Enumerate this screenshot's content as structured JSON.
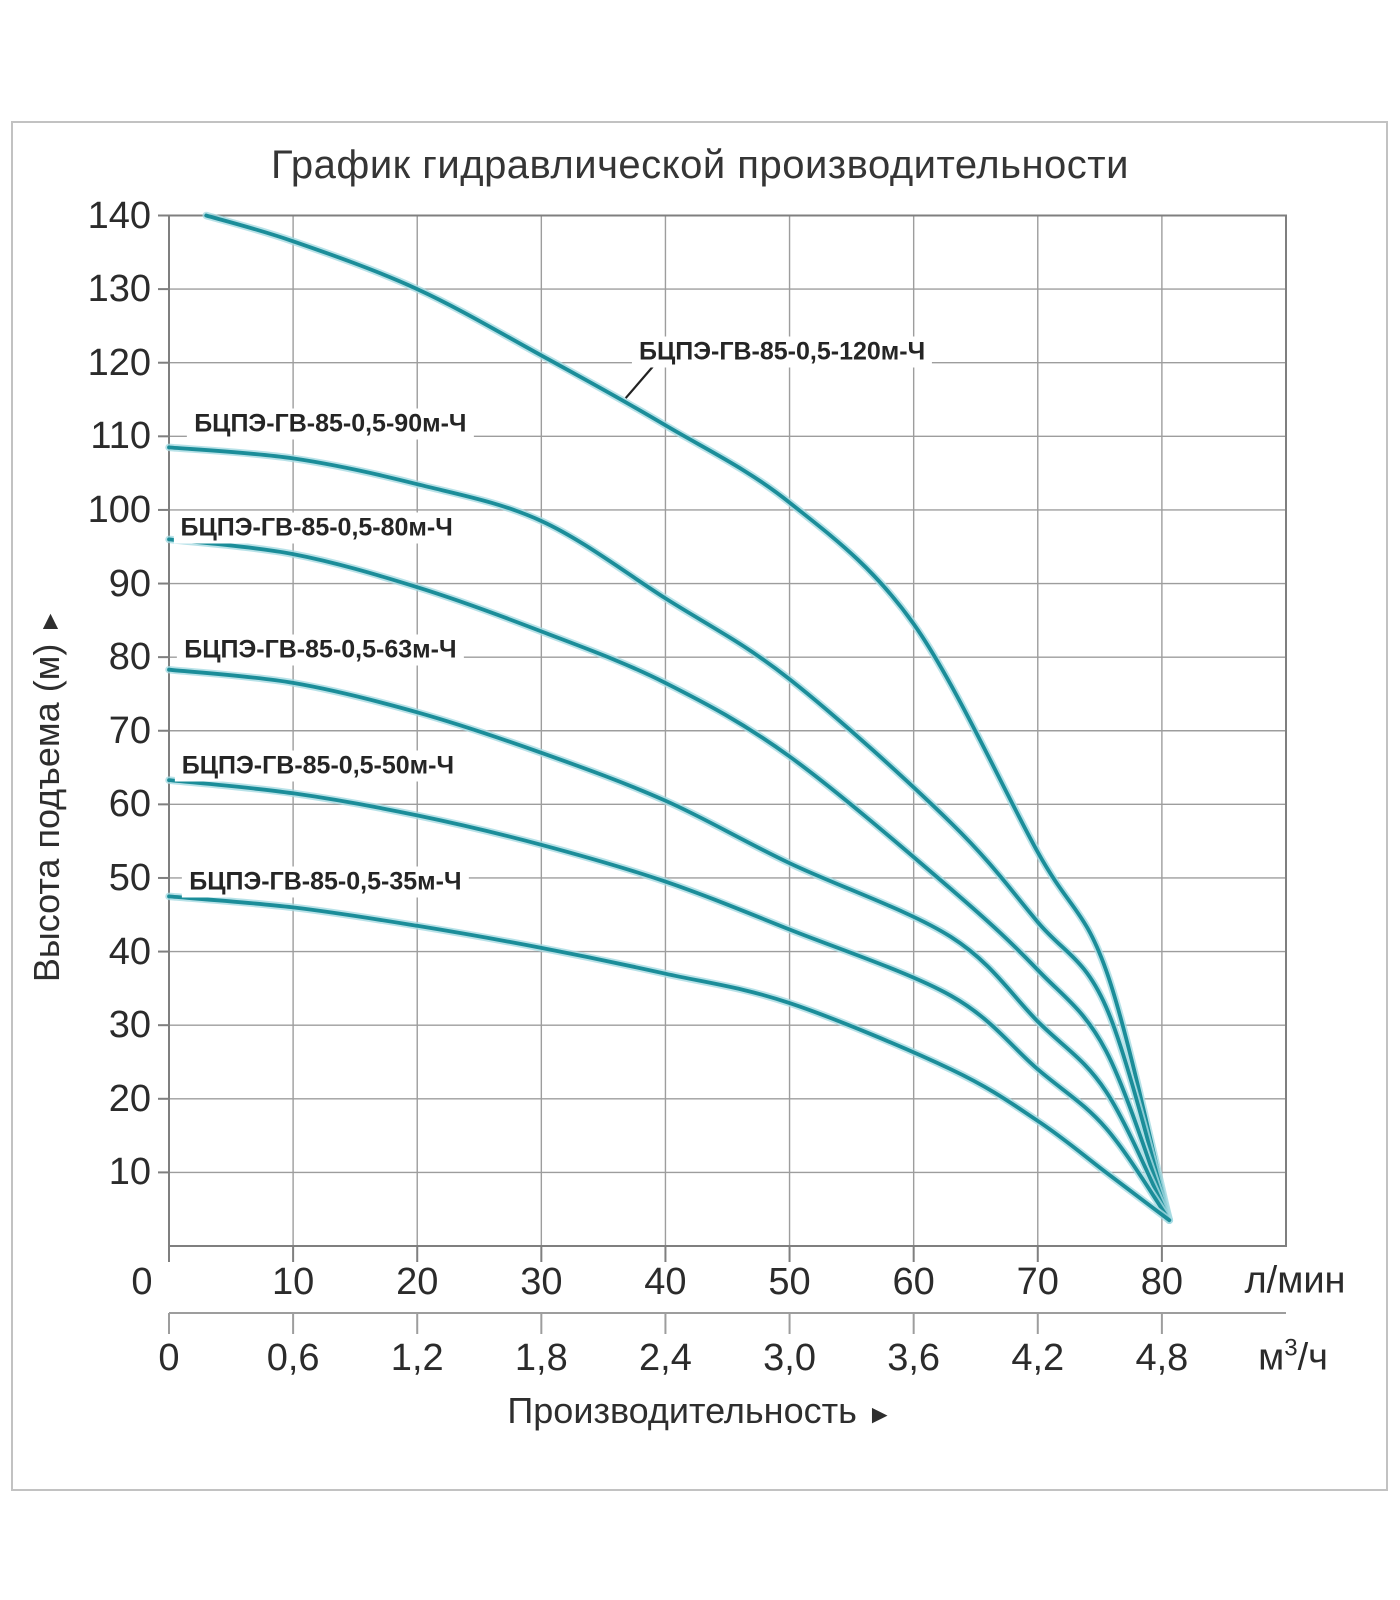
{
  "title": "График гидравлической производительности",
  "y_axis": {
    "title": "Высота подъема (м)",
    "arrow": "▲",
    "tick_labels": [
      "140",
      "130",
      "120",
      "110",
      "100",
      "90",
      "80",
      "70",
      "60",
      "50",
      "40",
      "30",
      "20",
      "10"
    ]
  },
  "x_axis_lmin": {
    "unit": "л/мин",
    "tick_labels": [
      "0",
      "10",
      "20",
      "30",
      "40",
      "50",
      "60",
      "70",
      "80"
    ]
  },
  "x_axis_m3h": {
    "unit_base": "м",
    "unit_sup": "3",
    "unit_rest": "/ч",
    "tick_labels": [
      "0",
      "0,6",
      "1,2",
      "1,8",
      "2,4",
      "3,0",
      "3,6",
      "4,2",
      "4,8"
    ]
  },
  "x_title": "Производительность",
  "x_title_arrow": "►",
  "colors": {
    "curve": "#1b8d99",
    "curve_halo": "#a6dbe2",
    "grid": "#9d9d9d",
    "plot_border": "#7f7f7f",
    "text": "#2b2b2b",
    "frame": "#c2c2c2"
  },
  "chart_data": {
    "type": "line",
    "title": "График гидравлической производительности",
    "xlabel": "Производительность",
    "ylabel": "Высота подъема (м)",
    "x_units": [
      "л/мин",
      "м³/ч"
    ],
    "xlim_lmin": [
      0,
      90
    ],
    "ylim_m": [
      0,
      140
    ],
    "grid_step": {
      "x_lmin": 10,
      "y_m": 10
    },
    "x_scale_note": "0,6 м³/ч = 10 л/мин",
    "series": [
      {
        "name": "БЦПЭ-ГВ-85-0,5-120м-Ч",
        "points_lmin_m": [
          [
            3,
            140
          ],
          [
            10,
            136.5
          ],
          [
            20,
            130
          ],
          [
            30,
            121
          ],
          [
            40,
            111.5
          ],
          [
            50,
            101
          ],
          [
            60,
            84.5
          ],
          [
            70,
            53.5
          ],
          [
            75.5,
            37.5
          ],
          [
            80.6,
            3.5
          ]
        ],
        "label_anchor": [
          49.4,
          121.5
        ],
        "leader_line": [
          [
            39,
            119.5
          ],
          [
            36.8,
            115.2
          ]
        ]
      },
      {
        "name": "БЦПЭ-ГВ-85-0,5-90м-Ч",
        "points_lmin_m": [
          [
            0,
            108.5
          ],
          [
            10,
            107
          ],
          [
            20,
            103.5
          ],
          [
            30,
            98.5
          ],
          [
            40,
            88
          ],
          [
            50,
            77
          ],
          [
            63,
            57.5
          ],
          [
            70,
            44
          ],
          [
            75.5,
            32.5
          ],
          [
            80.6,
            3.5
          ]
        ],
        "label_anchor": [
          13,
          111.7
        ]
      },
      {
        "name": "БЦПЭ-ГВ-85-0,5-80м-Ч",
        "points_lmin_m": [
          [
            0,
            96
          ],
          [
            10,
            94
          ],
          [
            20,
            89.5
          ],
          [
            30,
            83.5
          ],
          [
            40,
            76.5
          ],
          [
            50,
            66.5
          ],
          [
            63,
            48.5
          ],
          [
            70,
            37.5
          ],
          [
            75.5,
            26.5
          ],
          [
            80.6,
            3.5
          ]
        ],
        "label_anchor": [
          11.9,
          97.6
        ]
      },
      {
        "name": "БЦПЭ-ГВ-85-0,5-63м-Ч",
        "points_lmin_m": [
          [
            0,
            78.3
          ],
          [
            10,
            76.5
          ],
          [
            20,
            72.5
          ],
          [
            30,
            67
          ],
          [
            40,
            60.5
          ],
          [
            50,
            52
          ],
          [
            63,
            42
          ],
          [
            70,
            30.5
          ],
          [
            75.5,
            21
          ],
          [
            80.6,
            3.5
          ]
        ],
        "label_anchor": [
          12.2,
          81
        ]
      },
      {
        "name": "БЦПЭ-ГВ-85-0,5-50м-Ч",
        "points_lmin_m": [
          [
            0,
            63.3
          ],
          [
            10,
            61.5
          ],
          [
            20,
            58.5
          ],
          [
            30,
            54.5
          ],
          [
            40,
            49.5
          ],
          [
            50,
            43
          ],
          [
            63,
            34
          ],
          [
            70,
            24
          ],
          [
            75.5,
            16
          ],
          [
            80.6,
            3.5
          ]
        ],
        "label_anchor": [
          12,
          65.2
        ]
      },
      {
        "name": "БЦПЭ-ГВ-85-0,5-35м-Ч",
        "points_lmin_m": [
          [
            0,
            47.5
          ],
          [
            10,
            46
          ],
          [
            20,
            43.5
          ],
          [
            30,
            40.5
          ],
          [
            40,
            37
          ],
          [
            50,
            33
          ],
          [
            63,
            24
          ],
          [
            70,
            17
          ],
          [
            75.5,
            10
          ],
          [
            80.6,
            3.5
          ]
        ],
        "label_anchor": [
          12.6,
          49.5
        ]
      }
    ]
  }
}
